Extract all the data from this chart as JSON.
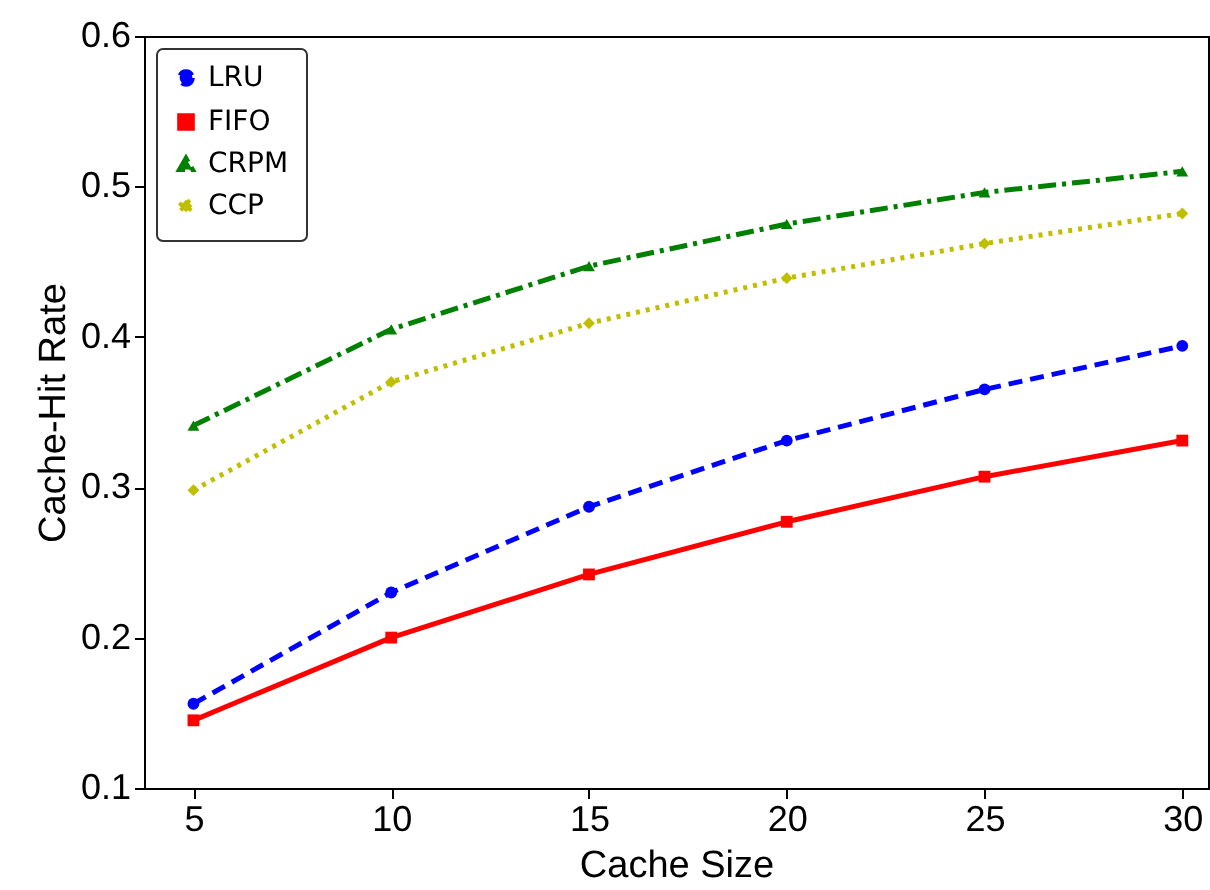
{
  "chart_data": {
    "type": "line",
    "xlabel": "Cache Size",
    "ylabel": "Cache-Hit Rate",
    "x": [
      5,
      10,
      15,
      20,
      25,
      30
    ],
    "xlim": [
      3.75,
      30.65
    ],
    "xticks": [
      5,
      10,
      15,
      20,
      25,
      30
    ],
    "ylim": [
      0.1,
      0.6
    ],
    "yticks": [
      0.1,
      0.2,
      0.3,
      0.4,
      0.5,
      0.6
    ],
    "grid": false,
    "legend": "top left",
    "series": [
      {
        "name": "LRU",
        "color": "#0000ff",
        "marker": "circle",
        "line_style": "dashed",
        "values": [
          0.156,
          0.23,
          0.287,
          0.331,
          0.365,
          0.394
        ]
      },
      {
        "name": "FIFO",
        "color": "#ff0000",
        "marker": "square",
        "line_style": "solid",
        "values": [
          0.145,
          0.2,
          0.242,
          0.277,
          0.307,
          0.331
        ]
      },
      {
        "name": "CRPM",
        "color": "#008000",
        "marker": "triangle",
        "line_style": "dashdot",
        "values": [
          0.341,
          0.405,
          0.447,
          0.475,
          0.496,
          0.51
        ]
      },
      {
        "name": "CCP",
        "color": "#bfbf00",
        "marker": "diamond",
        "line_style": "dotted",
        "values": [
          0.298,
          0.37,
          0.409,
          0.439,
          0.462,
          0.482
        ]
      }
    ]
  }
}
